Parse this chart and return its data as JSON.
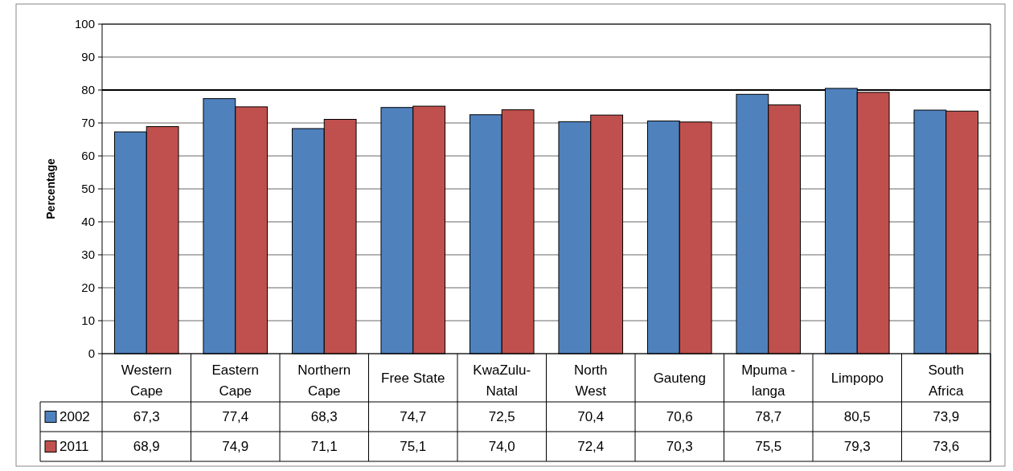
{
  "chart_data": {
    "type": "bar",
    "ylabel": "Percentage",
    "categories": [
      "Western Cape",
      "Eastern Cape",
      "Northern Cape",
      "Free State",
      "KwaZulu-Natal",
      "North West",
      "Gauteng",
      "Mpuma - langa",
      "Limpopo",
      "South Africa"
    ],
    "series": [
      {
        "name": "2002",
        "color": "#4f81bd",
        "values": [
          67.3,
          77.4,
          68.3,
          74.7,
          72.5,
          70.4,
          70.6,
          78.7,
          80.5,
          73.9
        ],
        "value_labels": [
          "67,3",
          "77,4",
          "68,3",
          "74,7",
          "72,5",
          "70,4",
          "70,6",
          "78,7",
          "80,5",
          "73,9"
        ]
      },
      {
        "name": "2011",
        "color": "#c0504d",
        "values": [
          68.9,
          74.9,
          71.1,
          75.1,
          74.0,
          72.4,
          70.3,
          75.5,
          79.3,
          73.6
        ],
        "value_labels": [
          "68,9",
          "74,9",
          "71,1",
          "75,1",
          "74,0",
          "72,4",
          "70,3",
          "75,5",
          "79,3",
          "73,6"
        ]
      }
    ],
    "ylim": [
      0,
      100
    ],
    "yticks": [
      0,
      10,
      20,
      30,
      40,
      50,
      60,
      70,
      80,
      90,
      100
    ],
    "grid": "y",
    "legend": "bottom",
    "ref_lines": [
      {
        "axis": "y",
        "value": 80,
        "color": "#000000"
      }
    ]
  }
}
